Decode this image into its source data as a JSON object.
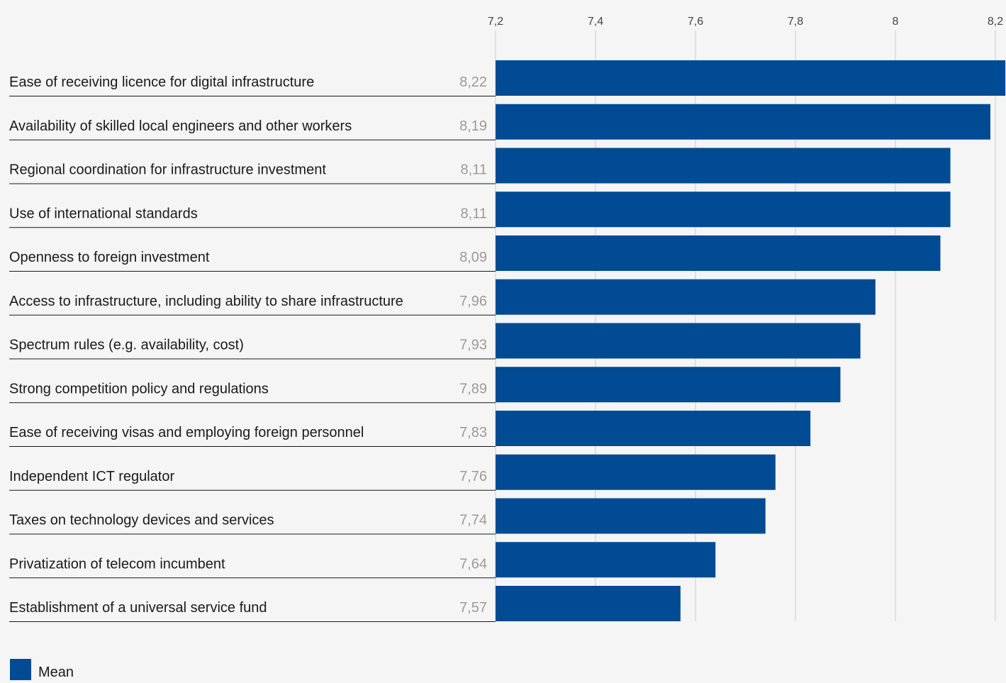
{
  "colors": {
    "bar": "#004b93",
    "gridline": "#cccccc",
    "row_rule": "#1a1a1a",
    "value_text": "#9a9a9a",
    "background": "#f5f5f5"
  },
  "chart_data": {
    "type": "bar",
    "orientation": "horizontal",
    "title": "",
    "xlabel": "",
    "ylabel": "",
    "xlim": [
      7.2,
      8.22
    ],
    "x_ticks": [
      7.2,
      7.4,
      7.6,
      7.8,
      8.0,
      8.2
    ],
    "x_tick_labels": [
      "7,2",
      "7,4",
      "7,6",
      "7,8",
      "8",
      "8,2"
    ],
    "grid": "vertical",
    "legend_position": "bottom-left",
    "categories": [
      "Ease of receiving licence for digital infrastructure",
      "Availability of skilled local engineers and other workers",
      "Regional coordination for infrastructure investment",
      "Use of international standards",
      "Openness to foreign investment",
      "Access to infrastructure, including ability to share infrastructure",
      "Spectrum rules (e.g. availability, cost)",
      "Strong competition policy and regulations",
      "Ease of receiving visas and employing foreign personnel",
      "Independent ICT regulator",
      "Taxes on technology devices and services",
      "Privatization of telecom incumbent",
      "Establishment of a universal service fund"
    ],
    "value_labels": [
      "8,22",
      "8,19",
      "8,11",
      "8,11",
      "8,09",
      "7,96",
      "7,93",
      "7,89",
      "7,83",
      "7,76",
      "7,74",
      "7,64",
      "7,57"
    ],
    "series": [
      {
        "name": "Mean",
        "values": [
          8.22,
          8.19,
          8.11,
          8.11,
          8.09,
          7.96,
          7.93,
          7.89,
          7.83,
          7.76,
          7.74,
          7.64,
          7.57
        ]
      }
    ]
  },
  "legend": {
    "label": "Mean"
  }
}
